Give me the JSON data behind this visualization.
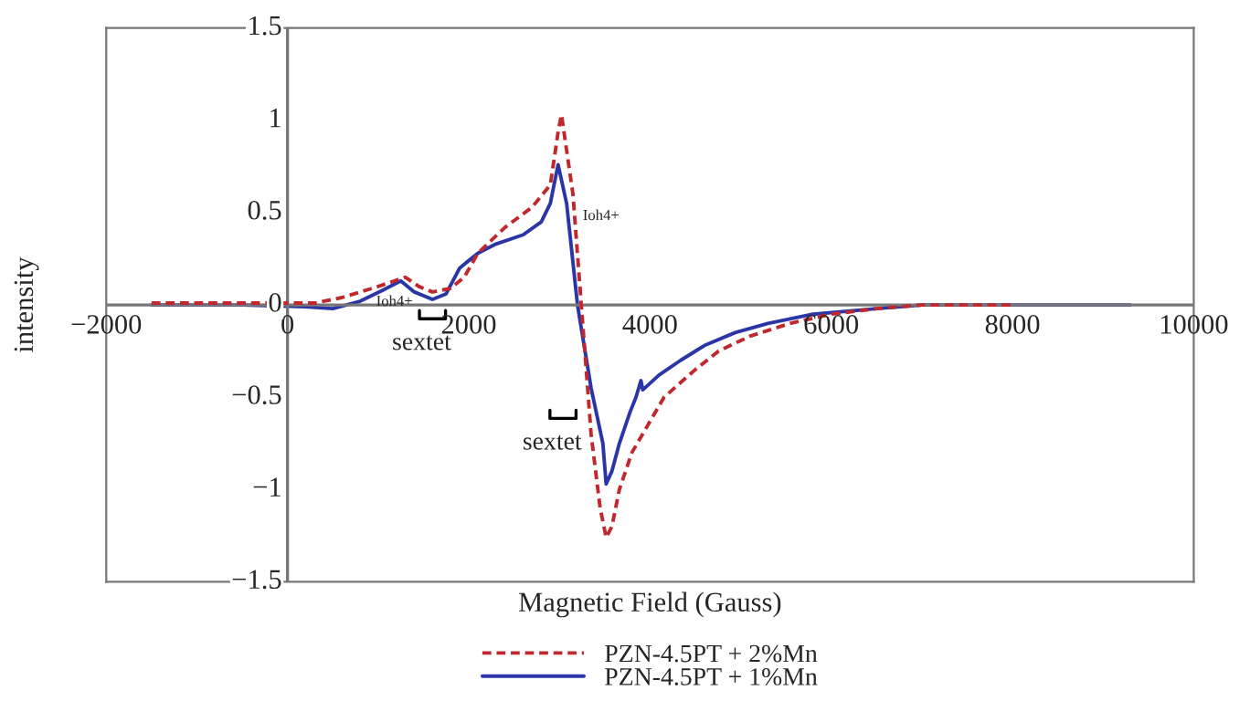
{
  "chart_data": {
    "type": "line",
    "xlabel": "Magnetic Field (Gauss)",
    "ylabel": "intensity",
    "xlim": [
      -2000,
      10000
    ],
    "xticks": [
      {
        "value": -2000,
        "label": "−2000"
      },
      0,
      2000,
      4000,
      6000,
      8000,
      10000
    ],
    "ylim": [
      -1.5,
      1.5
    ],
    "yticks": [
      {
        "value": -1.5,
        "label": "−1.5"
      },
      {
        "value": -1,
        "label": "−1"
      },
      {
        "value": -0.5,
        "label": "−0.5"
      },
      0,
      0.5,
      1,
      1.5
    ],
    "grid": false,
    "legend": "bottom",
    "series": [
      {
        "name": "PZN-4.5PT + 2%Mn",
        "color": "#c0282d",
        "line_style": "dashed",
        "x": [
          -1500,
          -500,
          300,
          600,
          1000,
          1300,
          1450,
          1600,
          1800,
          1950,
          2100,
          2400,
          2700,
          2900,
          2960,
          2990,
          3023,
          3150,
          3242,
          3350,
          3450,
          3516,
          3580,
          3662,
          3800,
          4155,
          4500,
          4758,
          5100,
          5543,
          6000,
          6500,
          7000,
          8000
        ],
        "values": [
          0.01,
          0.01,
          0.01,
          0.04,
          0.1,
          0.15,
          0.1,
          0.07,
          0.09,
          0.15,
          0.28,
          0.42,
          0.53,
          0.65,
          0.85,
          0.95,
          1.03,
          0.6,
          0.0,
          -0.7,
          -1.1,
          -1.26,
          -1.2,
          -1.0,
          -0.8,
          -0.5,
          -0.35,
          -0.25,
          -0.17,
          -0.1,
          -0.05,
          -0.02,
          0.0,
          0.0
        ]
      },
      {
        "name": "PZN-4.5PT + 1%Mn",
        "color": "#2a36a8",
        "line_style": "solid",
        "x": [
          -1500,
          -500,
          200,
          500,
          800,
          1050,
          1250,
          1400,
          1600,
          1750,
          1900,
          2100,
          2300,
          2600,
          2800,
          2900,
          2986,
          3080,
          3200,
          3350,
          3480,
          3516,
          3580,
          3662,
          3780,
          3845,
          3900,
          3920,
          4100,
          4338,
          4600,
          4940,
          5300,
          5800,
          6500,
          7000,
          8000,
          9300
        ],
        "values": [
          0.0,
          0.0,
          -0.01,
          -0.02,
          0.02,
          0.08,
          0.13,
          0.07,
          0.03,
          0.06,
          0.2,
          0.28,
          0.33,
          0.38,
          0.45,
          0.55,
          0.76,
          0.55,
          0.0,
          -0.45,
          -0.75,
          -0.97,
          -0.9,
          -0.75,
          -0.58,
          -0.5,
          -0.41,
          -0.46,
          -0.38,
          -0.3,
          -0.22,
          -0.15,
          -0.1,
          -0.05,
          -0.02,
          0.0,
          0.0,
          0.0
        ]
      }
    ],
    "annotations": [
      "Ioh4+",
      "Ioh4+",
      "sextet",
      "sextet"
    ]
  }
}
